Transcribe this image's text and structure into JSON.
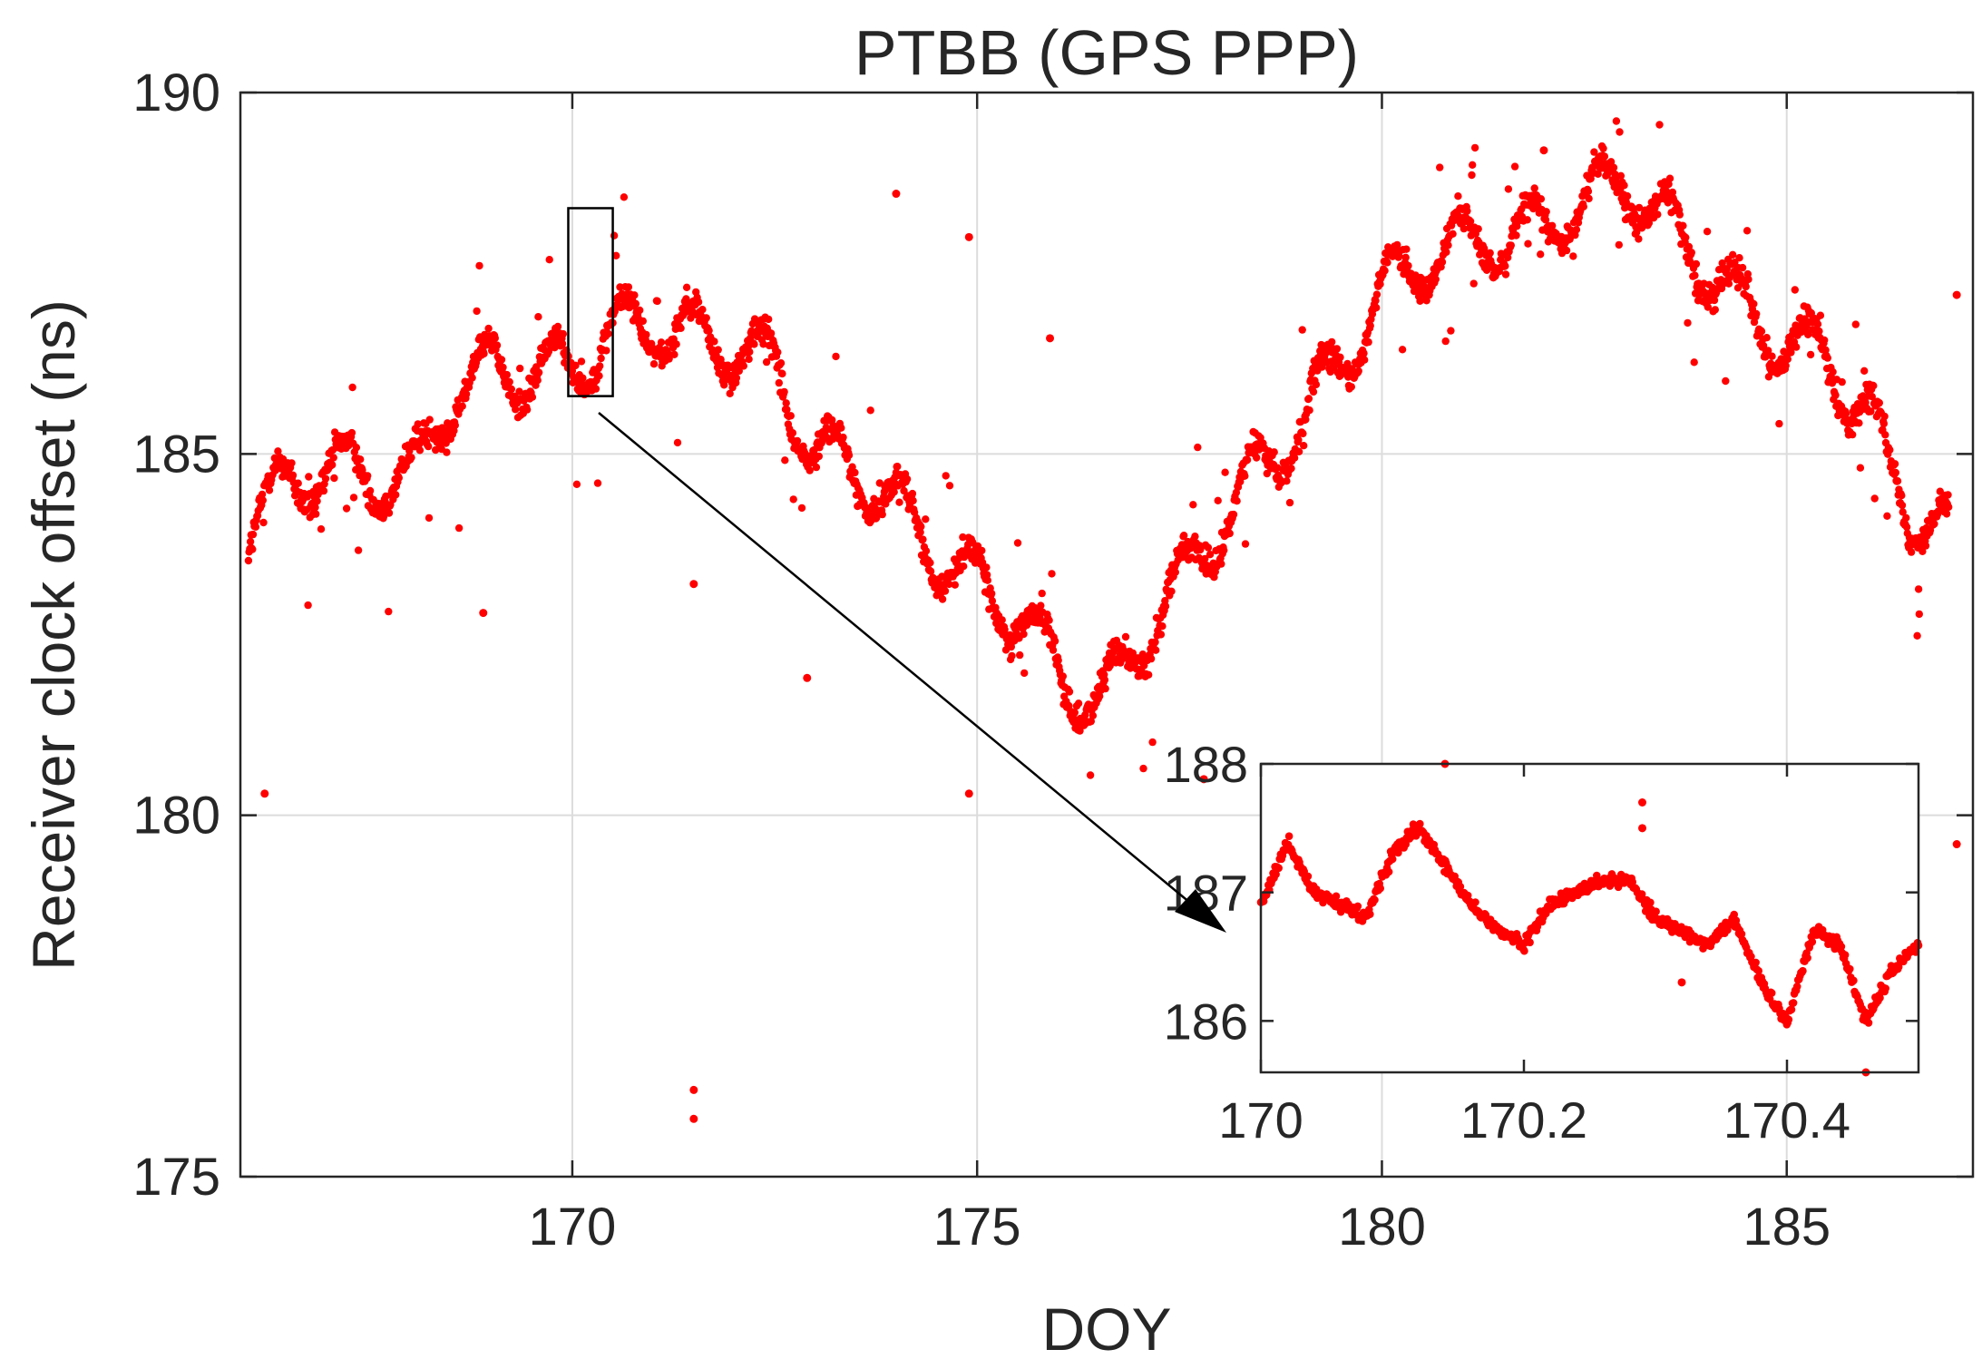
{
  "chart_data": [
    {
      "id": "main",
      "type": "scatter",
      "title": "PTBB (GPS PPP)",
      "xlabel": "DOY",
      "ylabel": "Receiver clock offset (ns)",
      "xlim": [
        165.9,
        187.3
      ],
      "ylim": [
        175,
        190
      ],
      "xticks": [
        170,
        175,
        180,
        185
      ],
      "yticks": [
        175,
        180,
        185,
        190
      ],
      "grid": true,
      "marker_color": "#ff0000",
      "series": [
        {
          "values_x": [
            166.0,
            166.5,
            167.0,
            167.5,
            168.0,
            168.5,
            169.0,
            169.5,
            170.0,
            170.5,
            171.0,
            171.5,
            172.0,
            172.5,
            173.0,
            173.5,
            174.0,
            174.5,
            175.0,
            175.5,
            176.0,
            176.5,
            177.0,
            177.5,
            178.0,
            178.5,
            179.0,
            179.5,
            180.0,
            180.5,
            181.0,
            181.5,
            182.0,
            182.5,
            183.0,
            183.5,
            184.0,
            184.5,
            185.0,
            185.5,
            186.0,
            186.5,
            187.0
          ],
          "values_y": [
            184.0,
            184.6,
            184.8,
            184.7,
            184.6,
            185.8,
            186.2,
            186.1,
            186.2,
            186.7,
            186.8,
            186.6,
            186.5,
            186.2,
            185.0,
            184.8,
            184.3,
            183.6,
            183.2,
            182.8,
            182.0,
            181.5,
            182.4,
            183.2,
            184.0,
            184.8,
            185.4,
            186.3,
            187.2,
            187.7,
            187.9,
            188.0,
            188.1,
            188.5,
            188.8,
            188.2,
            187.6,
            187.0,
            186.5,
            186.3,
            185.5,
            184.3,
            183.8
          ]
        }
      ],
      "outliers": [
        {
          "x": 166.2,
          "y": 180.3
        },
        {
          "x": 168.9,
          "y": 182.8
        },
        {
          "x": 171.5,
          "y": 176.2
        },
        {
          "x": 171.5,
          "y": 175.8
        },
        {
          "x": 171.5,
          "y": 183.2
        },
        {
          "x": 172.9,
          "y": 181.9
        },
        {
          "x": 174.0,
          "y": 188.6
        },
        {
          "x": 174.9,
          "y": 180.3
        },
        {
          "x": 174.9,
          "y": 188.0
        },
        {
          "x": 175.9,
          "y": 186.6
        },
        {
          "x": 177.8,
          "y": 180.5
        },
        {
          "x": 182.0,
          "y": 189.2
        },
        {
          "x": 187.1,
          "y": 187.2
        },
        {
          "x": 187.1,
          "y": 179.6
        }
      ]
    },
    {
      "id": "inset",
      "type": "scatter",
      "xlim": [
        170.0,
        170.5
      ],
      "ylim": [
        185.6,
        188.0
      ],
      "xticks": [
        170,
        170.2,
        170.4
      ],
      "xtick_labels": [
        "170",
        "170.2",
        "170.4"
      ],
      "yticks": [
        186,
        187,
        188
      ],
      "grid": false,
      "marker_color": "#ff0000",
      "series": [
        {
          "values_x": [
            170.0,
            170.02,
            170.04,
            170.06,
            170.08,
            170.1,
            170.12,
            170.14,
            170.16,
            170.18,
            170.2,
            170.22,
            170.24,
            170.26,
            170.28,
            170.3,
            170.32,
            170.34,
            170.36,
            170.38,
            170.4,
            170.42,
            170.44,
            170.46,
            170.48,
            170.5
          ],
          "values_y": [
            186.9,
            187.4,
            187.0,
            186.9,
            186.8,
            187.3,
            187.5,
            187.2,
            186.9,
            186.7,
            186.6,
            186.9,
            187.0,
            187.1,
            187.1,
            186.8,
            186.7,
            186.6,
            186.8,
            186.3,
            186.0,
            186.7,
            186.6,
            186.0,
            186.4,
            186.6
          ]
        }
      ],
      "outliers": [
        {
          "x": 170.14,
          "y": 188.0
        },
        {
          "x": 170.29,
          "y": 187.7
        },
        {
          "x": 170.29,
          "y": 187.5
        },
        {
          "x": 170.32,
          "y": 186.3
        },
        {
          "x": 170.46,
          "y": 185.6
        }
      ]
    }
  ]
}
